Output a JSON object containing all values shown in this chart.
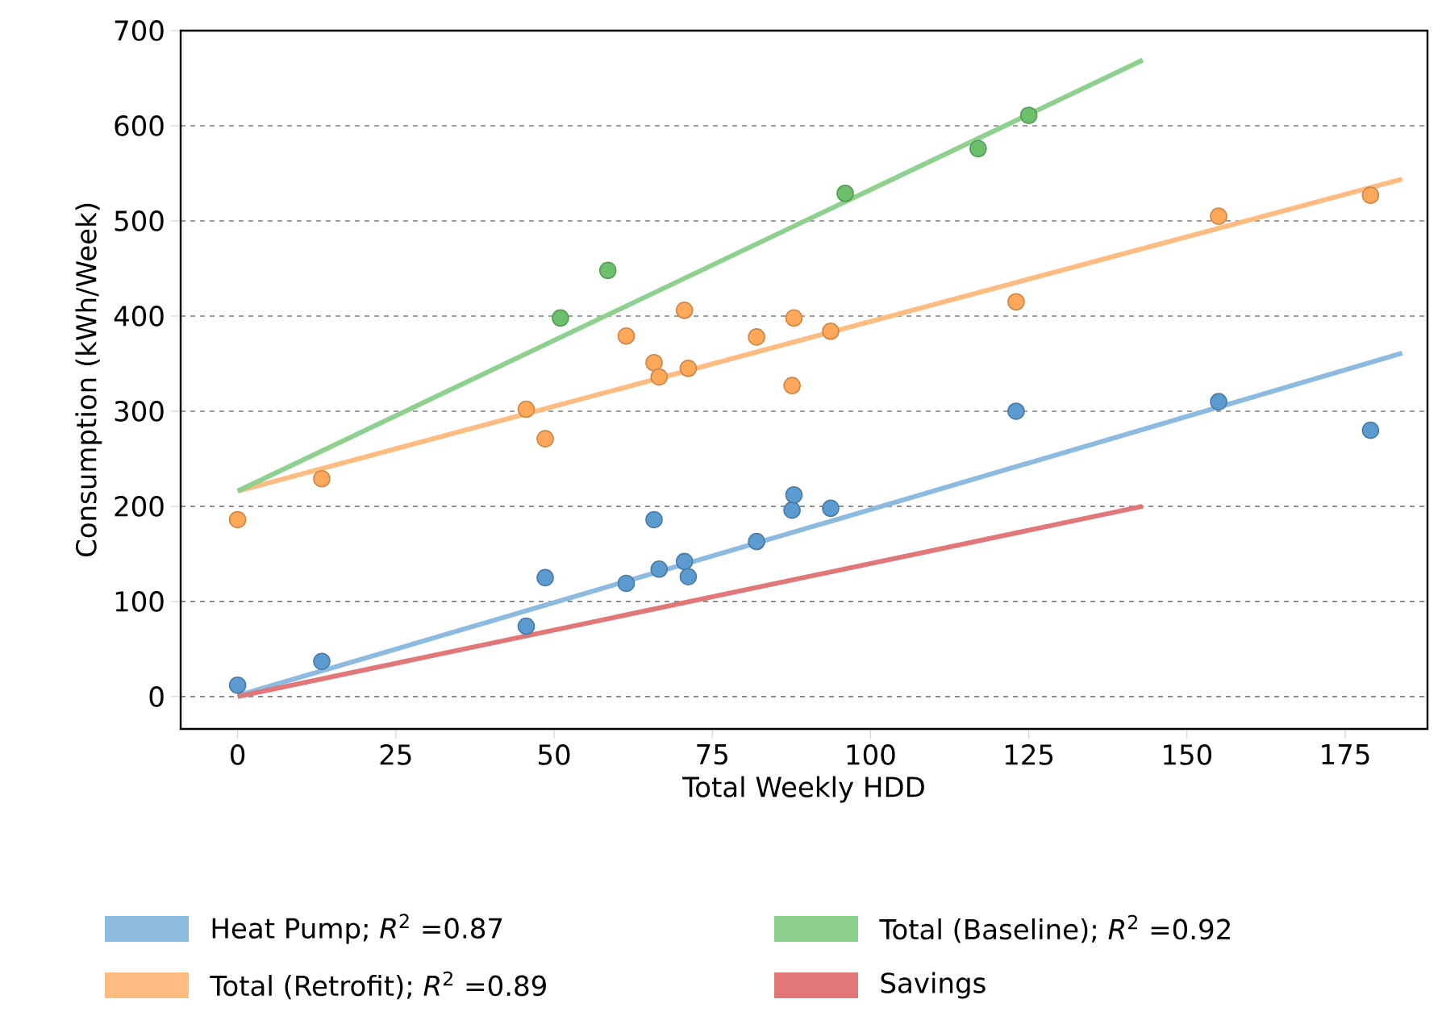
{
  "chart_data": {
    "type": "scatter",
    "xlabel": "Total Weekly HDD",
    "ylabel": "Consumption (kWh/Week)",
    "xlim": [
      -9,
      188
    ],
    "ylim": [
      -34,
      700
    ],
    "xticks": [
      0,
      25,
      50,
      75,
      100,
      125,
      150,
      175
    ],
    "yticks": [
      0,
      100,
      200,
      300,
      400,
      500,
      600,
      700
    ],
    "grid": "y",
    "legend": "bottom",
    "series": [
      {
        "marker": "circle",
        "color": "#5b9bd0",
        "x": [
          0,
          13.3,
          45.6,
          48.6,
          61.4,
          65.8,
          66.6,
          70.6,
          71.2,
          82,
          87.6,
          87.9,
          93.7,
          123,
          155,
          179
        ],
        "values": [
          12,
          37,
          74,
          125,
          119,
          186,
          134,
          142,
          126,
          163,
          196,
          212,
          198,
          300,
          310,
          280
        ]
      },
      {
        "marker": "circle",
        "color": "#ffa85a",
        "x": [
          0,
          13.3,
          45.6,
          48.6,
          61.4,
          65.8,
          66.6,
          70.6,
          71.2,
          82,
          87.6,
          87.9,
          93.7,
          123,
          155,
          179
        ],
        "values": [
          186,
          229,
          302,
          271,
          379,
          351,
          336,
          406,
          345,
          378,
          327,
          398,
          384,
          415,
          505,
          527
        ]
      },
      {
        "marker": "circle",
        "color": "#6cc06c",
        "x": [
          51,
          58.5,
          96,
          117,
          125
        ],
        "values": [
          398,
          448,
          529,
          576,
          611
        ]
      },
      {
        "type": "line",
        "marker": "none",
        "name": "Heat Pump; *R*$^{2}$ =0.87",
        "color": "#8dbbdf",
        "x": [
          0,
          184
        ],
        "values": [
          1,
          361
        ]
      },
      {
        "type": "line",
        "marker": "none",
        "name": "Total (Retrofit); *R*$^{2}$ =0.89",
        "color": "#ffbb80",
        "x": [
          0,
          184
        ],
        "values": [
          216,
          544
        ]
      },
      {
        "type": "line",
        "marker": "none",
        "name": "Total (Baseline); *R*$^{2}$ =0.92",
        "color": "#8ed08e",
        "x": [
          0,
          143
        ],
        "values": [
          216,
          669
        ]
      },
      {
        "type": "line",
        "marker": "none",
        "name": "Savings",
        "color": "#e2777a",
        "x": [
          0,
          143
        ],
        "values": [
          0,
          200
        ]
      }
    ]
  }
}
